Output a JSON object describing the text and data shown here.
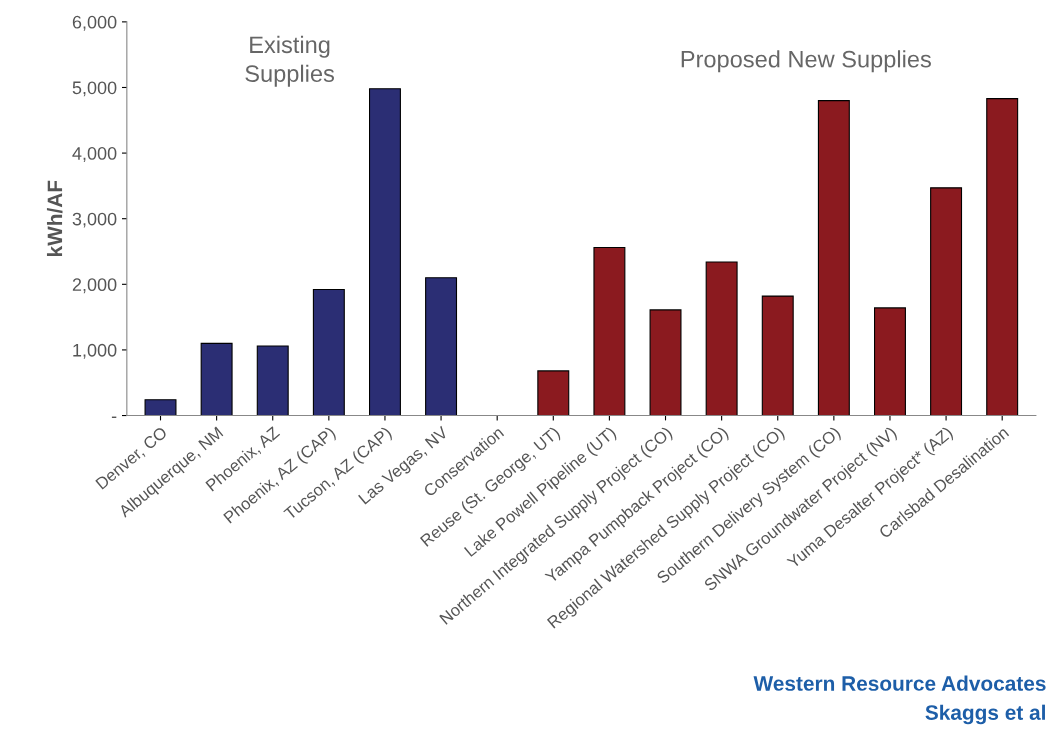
{
  "chart_data": {
    "type": "bar",
    "ylabel": "kWh/AF",
    "categories": [
      "Denver, CO",
      "Albuquerque, NM",
      "Phoenix, AZ",
      "Phoenix, AZ (CAP)",
      "Tucson, AZ (CAP)",
      "Las Vegas, NV",
      "Conservation",
      "Reuse (St. George, UT)",
      "Lake Powell Pipeline (UT)",
      "Northern Integrated Supply Project (CO)",
      "Yampa Pumpback Project (CO)",
      "Regional Watershed Supply Project (CO)",
      "Southern Delivery System (CO)",
      "SNWA Groundwater Project (NV)",
      "Yuma Desalter Project* (AZ)",
      "Carlsbad Desalination"
    ],
    "values": [
      240,
      1100,
      1060,
      1920,
      4980,
      2100,
      0,
      680,
      2560,
      1610,
      2340,
      1820,
      4800,
      1640,
      3470,
      4830
    ],
    "colors": [
      "#2b2e74",
      "#2b2e74",
      "#2b2e74",
      "#2b2e74",
      "#2b2e74",
      "#2b2e74",
      "#8b1a1f",
      "#8b1a1f",
      "#8b1a1f",
      "#8b1a1f",
      "#8b1a1f",
      "#8b1a1f",
      "#8b1a1f",
      "#8b1a1f",
      "#8b1a1f",
      "#8b1a1f"
    ],
    "ylim": [
      0,
      6000
    ],
    "yticks": [
      {
        "value": 0,
        "label": "-"
      },
      {
        "value": 1000,
        "label": "1,000"
      },
      {
        "value": 2000,
        "label": "2,000"
      },
      {
        "value": 3000,
        "label": "3,000"
      },
      {
        "value": 4000,
        "label": "4,000"
      },
      {
        "value": 5000,
        "label": "5,000"
      },
      {
        "value": 6000,
        "label": "6,000"
      }
    ],
    "grid": false,
    "legend": false,
    "annotations": [
      "Existing\nSupplies",
      "Proposed New Supplies",
      "Western Resource Advocates",
      "Skaggs et al"
    ]
  }
}
